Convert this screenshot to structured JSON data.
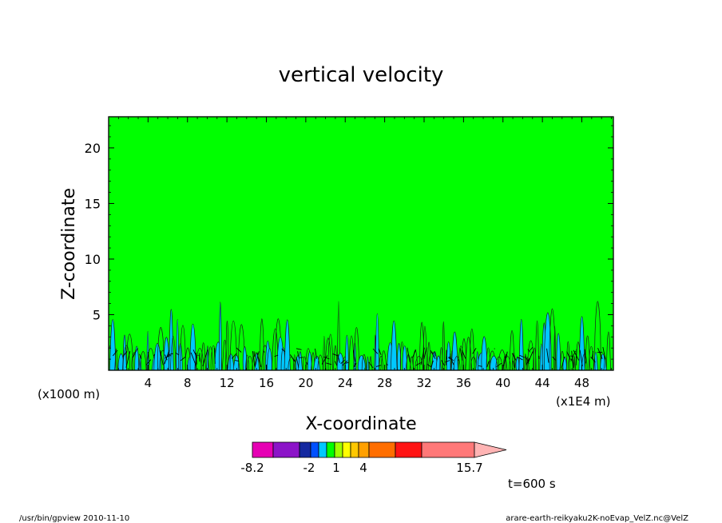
{
  "chart_data": {
    "type": "heatmap",
    "title": "vertical velocity",
    "xlabel": "X-coordinate",
    "ylabel": "Z-coordinate",
    "x_scale_label": "(x1000 m)",
    "x_unit_label": "(x1E4 m)",
    "x_ticks": [
      4,
      8,
      12,
      16,
      20,
      24,
      28,
      32,
      36,
      40,
      44,
      48
    ],
    "y_ticks": [
      5,
      10,
      15,
      20
    ],
    "xlim": [
      0,
      51.2
    ],
    "ylim": [
      0,
      22.8
    ],
    "background_value_color": "#00ff00",
    "colorbar": {
      "tick_labels": [
        "-8.2",
        "-2",
        "1",
        "4",
        "15.7"
      ],
      "tick_values": [
        -8.2,
        -2,
        1,
        4,
        15.7
      ],
      "colors": [
        "#e600b4",
        "#8c14c8",
        "#1428a0",
        "#0050ff",
        "#00c8ff",
        "#00ff00",
        "#a0ff00",
        "#ffff00",
        "#ffc800",
        "#ffa000",
        "#ff6e00",
        "#ff1414",
        "#ff7878",
        "#ffb4b4"
      ]
    },
    "annotation": "t=600 s"
  },
  "footer": {
    "left": "/usr/bin/gpview   2010-11-10",
    "right": "arare-earth-reikyaku2K-noEvap_VelZ.nc@VelZ"
  }
}
